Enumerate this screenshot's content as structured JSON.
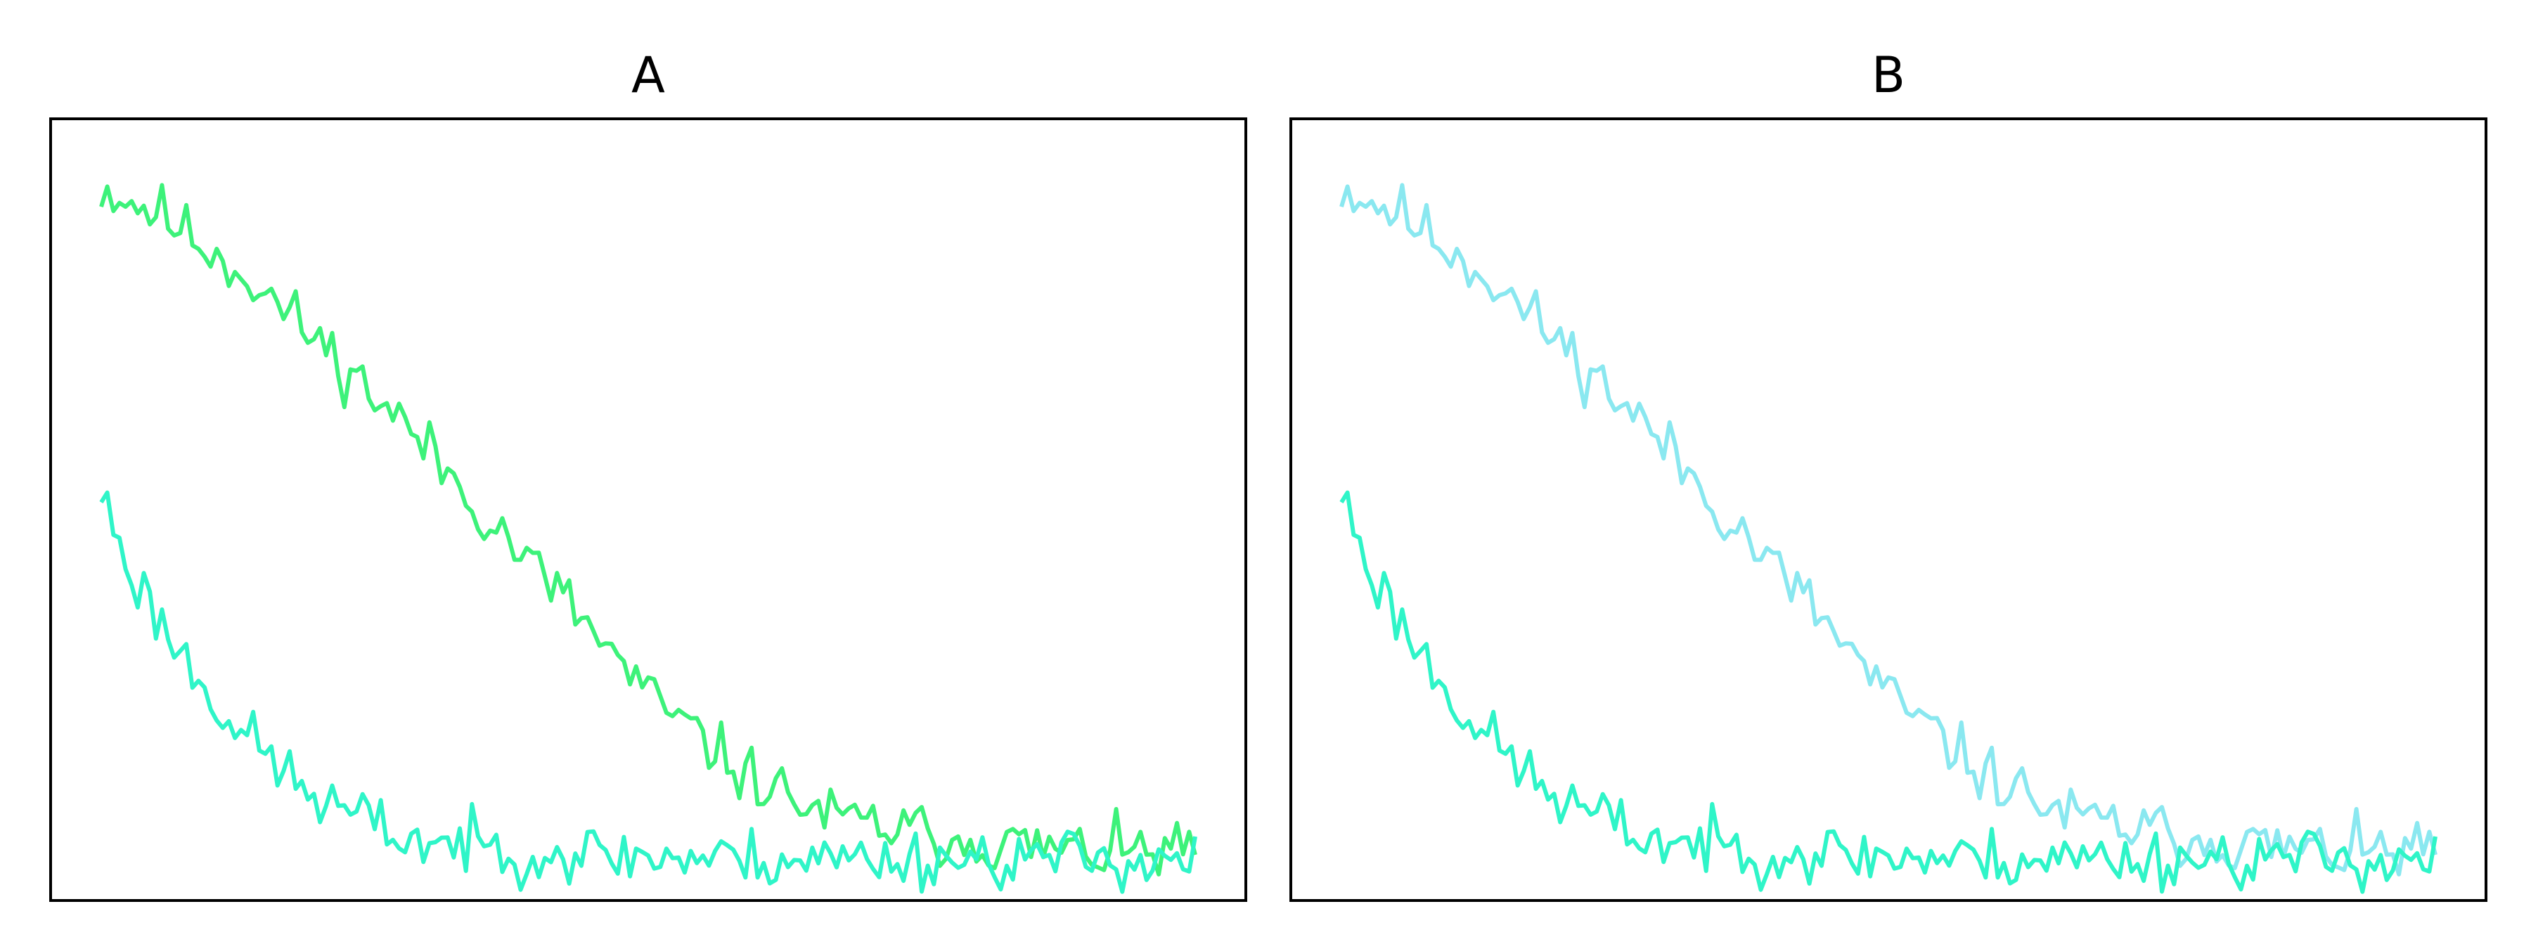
{
  "chart_data": [
    {
      "type": "line",
      "title": "A",
      "xlabel": "",
      "ylabel": "",
      "axes_visible": false,
      "grid": false,
      "xlim": [
        0,
        360
      ],
      "ylim": [
        -0.05,
        1.1
      ],
      "series": [
        {
          "color": "#3df27a",
          "profile": {
            "x": [
              0,
              20,
              45,
              70,
              100,
              130,
              155,
              180,
              210,
              240,
              280,
              320,
              360
            ],
            "y": [
              1.0,
              0.96,
              0.88,
              0.78,
              0.65,
              0.5,
              0.38,
              0.25,
              0.14,
              0.07,
              0.04,
              0.02,
              0.02
            ]
          },
          "noise": 0.022,
          "seed": 11
        },
        {
          "color": "#2ff5c8",
          "profile": {
            "x": [
              0,
              10,
              25,
              45,
              70,
              100,
              140,
              200,
              260,
              360
            ],
            "y": [
              0.55,
              0.43,
              0.32,
              0.2,
              0.1,
              0.04,
              0.02,
              0.01,
              0.01,
              0.01
            ]
          },
          "noise": 0.022,
          "seed": 23
        }
      ]
    },
    {
      "type": "line",
      "title": "B",
      "xlabel": "",
      "ylabel": "",
      "axes_visible": false,
      "grid": false,
      "xlim": [
        0,
        360
      ],
      "ylim": [
        -0.05,
        1.1
      ],
      "series": [
        {
          "color": "#8ae8f0",
          "profile": {
            "x": [
              0,
              20,
              45,
              70,
              100,
              130,
              155,
              180,
              210,
              240,
              280,
              320,
              360
            ],
            "y": [
              1.0,
              0.96,
              0.88,
              0.78,
              0.65,
              0.5,
              0.38,
              0.25,
              0.14,
              0.07,
              0.04,
              0.02,
              0.02
            ]
          },
          "noise": 0.022,
          "seed": 11
        },
        {
          "color": "#2ff5c8",
          "profile": {
            "x": [
              0,
              10,
              25,
              45,
              70,
              100,
              140,
              200,
              260,
              360
            ],
            "y": [
              0.55,
              0.43,
              0.32,
              0.2,
              0.1,
              0.04,
              0.02,
              0.01,
              0.01,
              0.01
            ]
          },
          "noise": 0.022,
          "seed": 23
        }
      ]
    }
  ]
}
